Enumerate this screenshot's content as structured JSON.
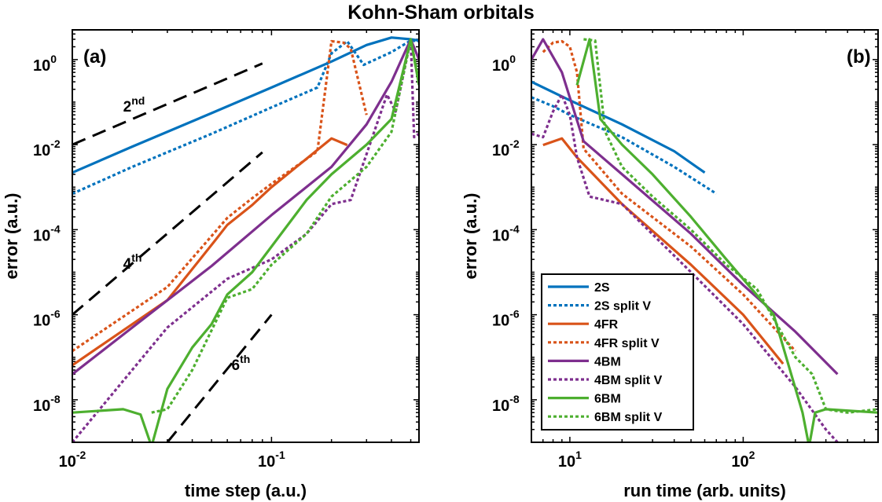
{
  "figure": {
    "title": "Kohn-Sham orbitals"
  },
  "styles": {
    "2S": {
      "color": "#0072BD",
      "dash": ""
    },
    "2S split V": {
      "color": "#0072BD",
      "dash": "4,3"
    },
    "4FR": {
      "color": "#D95319",
      "dash": ""
    },
    "4FR split V": {
      "color": "#D95319",
      "dash": "4,3"
    },
    "4BM": {
      "color": "#7E2F8E",
      "dash": ""
    },
    "4BM split V": {
      "color": "#7E2F8E",
      "dash": "4,3"
    },
    "6BM": {
      "color": "#4DAF2F",
      "dash": ""
    },
    "6BM split V": {
      "color": "#4DAF2F",
      "dash": "4,3"
    },
    "reference": {
      "color": "#000000",
      "dash": "18,10"
    }
  },
  "legend": {
    "placement": "lower-left of panel (b)",
    "entries": [
      "2S",
      "2S split V",
      "4FR",
      "4FR split V",
      "4BM",
      "4BM split V",
      "6BM",
      "6BM split V"
    ]
  },
  "chart_data": [
    {
      "type": "line",
      "panel_label": "(a)",
      "xlabel": "time step (a.u.)",
      "ylabel": "error (a.u.)",
      "xscale": "log",
      "yscale": "log",
      "xlim": [
        0.01,
        0.55
      ],
      "ylim": [
        1e-09,
        5
      ],
      "xticks": [
        {
          "value": 0.01,
          "base": "10",
          "exp": "-2"
        },
        {
          "value": 0.1,
          "base": "10",
          "exp": "-1"
        }
      ],
      "yticks": [
        {
          "value": 1,
          "base": "10",
          "exp": "0"
        },
        {
          "value": 0.01,
          "base": "10",
          "exp": "-2"
        },
        {
          "value": 0.0001,
          "base": "10",
          "exp": "-4"
        },
        {
          "value": 1e-06,
          "base": "10",
          "exp": "-6"
        },
        {
          "value": 1e-08,
          "base": "10",
          "exp": "-8"
        }
      ],
      "series": [
        {
          "name": "2S",
          "x": [
            0.01,
            0.02,
            0.05,
            0.1,
            0.2,
            0.3,
            0.4,
            0.5,
            0.55
          ],
          "y": [
            0.0022,
            0.009,
            0.055,
            0.22,
            0.9,
            2.2,
            3.3,
            3.0,
            2.8
          ]
        },
        {
          "name": "2S split V",
          "x": [
            0.01,
            0.02,
            0.05,
            0.1,
            0.17,
            0.2,
            0.24,
            0.29,
            0.4,
            0.5,
            0.55
          ],
          "y": [
            0.0007,
            0.003,
            0.018,
            0.075,
            0.22,
            1.4,
            2.7,
            0.75,
            1.5,
            2.8,
            2.7
          ]
        },
        {
          "name": "4FR",
          "x": [
            0.01,
            0.03,
            0.052,
            0.06,
            0.08,
            0.1,
            0.2,
            0.24
          ],
          "y": [
            6.5e-08,
            2.2e-06,
            5.5e-05,
            0.00013,
            0.00038,
            0.001,
            0.014,
            0.0098
          ]
        },
        {
          "name": "4FR split V",
          "x": [
            0.01,
            0.03,
            0.06,
            0.08,
            0.1,
            0.17,
            0.2,
            0.23,
            0.25,
            0.3
          ],
          "y": [
            1.4e-07,
            4.5e-06,
            0.00019,
            0.00055,
            0.0012,
            0.007,
            2.7,
            2.5,
            1.8,
            0.05
          ]
        },
        {
          "name": "4BM",
          "x": [
            0.01,
            0.02,
            0.05,
            0.1,
            0.2,
            0.3,
            0.4,
            0.5,
            0.55
          ],
          "y": [
            4e-08,
            5e-07,
            1.4e-05,
            0.00022,
            0.003,
            0.03,
            0.3,
            3.0,
            1.0
          ]
        },
        {
          "name": "4BM split V",
          "x": [
            0.01,
            0.03,
            0.06,
            0.1,
            0.15,
            0.2,
            0.25,
            0.3,
            0.38,
            0.42,
            0.5,
            0.52,
            0.55
          ],
          "y": [
            1e-09,
            5e-07,
            7e-06,
            2e-05,
            8e-05,
            0.0004,
            0.0005,
            0.006,
            0.15,
            0.06,
            3.0,
            0.015,
            0.018
          ]
        },
        {
          "name": "6BM",
          "x": [
            0.01,
            0.018,
            0.022,
            0.025,
            0.03,
            0.04,
            0.05,
            0.06,
            0.08,
            0.1,
            0.15,
            0.2,
            0.3,
            0.4,
            0.5,
            0.55
          ],
          "y": [
            5e-09,
            6e-09,
            4.5e-09,
            8e-10,
            1.8e-08,
            1.7e-07,
            6e-07,
            3e-06,
            1e-05,
            4e-05,
            0.0005,
            0.002,
            0.01,
            0.04,
            3.0,
            0.25
          ]
        },
        {
          "name": "6BM split V",
          "x": [
            0.025,
            0.03,
            0.04,
            0.06,
            0.08,
            0.1,
            0.15,
            0.2,
            0.3,
            0.4,
            0.5,
            0.55
          ],
          "y": [
            5e-09,
            6e-09,
            5e-08,
            2.5e-06,
            4e-06,
            1.5e-05,
            8e-05,
            0.0006,
            0.003,
            0.02,
            3.0,
            0.3
          ]
        }
      ],
      "reference_lines": [
        {
          "label": "2nd",
          "base": "2",
          "sup": "nd",
          "x": [
            0.01,
            0.09
          ],
          "y": [
            0.01,
            0.81
          ],
          "label_at": [
            0.018,
            0.06
          ]
        },
        {
          "label": "4th",
          "base": "4",
          "sup": "th",
          "x": [
            0.01,
            0.09
          ],
          "y": [
            1e-06,
            0.0066
          ],
          "label_at": [
            0.018,
            1.2e-05
          ]
        },
        {
          "label": "6th",
          "base": "6",
          "sup": "th",
          "x": [
            0.03,
            0.1
          ],
          "y": [
            1e-09,
            1e-06
          ],
          "label_at": [
            0.063,
            5e-08
          ]
        }
      ]
    },
    {
      "type": "line",
      "panel_label": "(b)",
      "xlabel": "run time (arb. units)",
      "ylabel": "error (a.u.)",
      "xscale": "log",
      "yscale": "log",
      "xlim": [
        6,
        600
      ],
      "ylim": [
        1e-09,
        5
      ],
      "xticks": [
        {
          "value": 10,
          "base": "10",
          "exp": "1"
        },
        {
          "value": 100,
          "base": "10",
          "exp": "2"
        }
      ],
      "yticks": [
        {
          "value": 1,
          "base": "10",
          "exp": "0"
        },
        {
          "value": 0.01,
          "base": "10",
          "exp": "-2"
        },
        {
          "value": 0.0001,
          "base": "10",
          "exp": "-4"
        },
        {
          "value": 1e-06,
          "base": "10",
          "exp": "-6"
        },
        {
          "value": 1e-08,
          "base": "10",
          "exp": "-8"
        }
      ],
      "series": [
        {
          "name": "2S",
          "x": [
            6,
            10,
            20,
            40,
            60
          ],
          "y": [
            0.3,
            0.11,
            0.03,
            0.007,
            0.0022
          ]
        },
        {
          "name": "2S split V",
          "x": [
            6,
            8,
            10,
            20,
            40,
            70
          ],
          "y": [
            0.13,
            0.08,
            0.05,
            0.015,
            0.003,
            0.0007
          ]
        },
        {
          "name": "4FR",
          "x": [
            7,
            9,
            11,
            20,
            50,
            100,
            170
          ],
          "y": [
            0.0098,
            0.014,
            0.005,
            0.0004,
            1.5e-05,
            1e-06,
            7e-08
          ]
        },
        {
          "name": "4FR split V",
          "x": [
            7,
            8,
            9,
            10,
            11,
            12,
            20,
            50,
            100,
            200
          ],
          "y": [
            1.5,
            2.5,
            2.7,
            2.0,
            0.5,
            0.008,
            0.0007,
            4e-05,
            3e-06,
            1.4e-07
          ]
        },
        {
          "name": "4BM",
          "x": [
            6,
            7,
            9,
            12,
            20,
            50,
            100,
            200,
            350
          ],
          "y": [
            1.0,
            3.0,
            0.5,
            0.012,
            0.002,
            8e-05,
            5e-06,
            4e-07,
            4e-08
          ]
        },
        {
          "name": "4BM split V",
          "x": [
            6,
            7,
            8,
            9,
            10,
            11,
            13,
            20,
            50,
            100,
            200,
            300,
            350
          ],
          "y": [
            0.018,
            0.015,
            0.06,
            0.15,
            0.05,
            0.005,
            0.0006,
            0.0004,
            1e-05,
            6e-07,
            2e-08,
            2e-09,
            1e-09
          ]
        },
        {
          "name": "6BM",
          "x": [
            11,
            13,
            15,
            20,
            30,
            50,
            80,
            150,
            220,
            240,
            260,
            300,
            600
          ],
          "y": [
            0.25,
            3.0,
            0.04,
            0.01,
            0.002,
            0.0002,
            2e-05,
            1e-06,
            5e-09,
            8e-10,
            5e-09,
            6e-09,
            5e-09
          ]
        },
        {
          "name": "6BM split V",
          "x": [
            12,
            14,
            16,
            20,
            30,
            50,
            80,
            120,
            200,
            250,
            300,
            400,
            600
          ],
          "y": [
            3.0,
            2.8,
            0.02,
            0.003,
            0.0006,
            0.0001,
            1.5e-05,
            4e-06,
            1e-07,
            4e-08,
            6e-09,
            5e-09,
            6e-09
          ]
        }
      ]
    }
  ]
}
